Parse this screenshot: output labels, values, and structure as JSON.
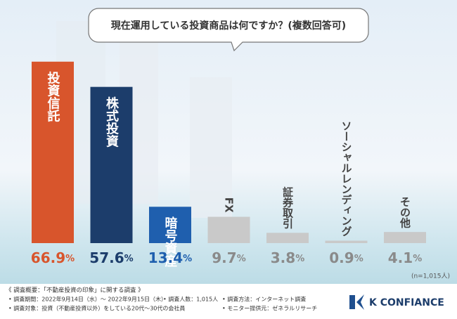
{
  "chart_data": {
    "type": "bar",
    "title": "現在運用している投資商品は何ですか？(複数回答可)",
    "categories": [
      "投資信託",
      "株式投資",
      "暗号資産",
      "FX",
      "証券取引",
      "ソーシャルレンディング",
      "その他"
    ],
    "values": [
      66.9,
      57.6,
      13.4,
      9.7,
      3.8,
      0.9,
      4.1
    ],
    "value_labels": [
      "66.9%",
      "57.6%",
      "13.4%",
      "9.7%",
      "3.8%",
      "0.9%",
      "4.1%"
    ],
    "colors": [
      "#d8552c",
      "#1c3d6b",
      "#1f5fae",
      "#c9c9c9",
      "#c9c9c9",
      "#c9c9c9",
      "#c9c9c9"
    ],
    "note": "(n=1,015人)"
  },
  "footer": {
    "heading": "《 調査概要：「不動産投資の印象」に関する調査 》",
    "items": [
      "• 調査期間：2022年9月14日（水）～ 2022年9月15日（木）",
      "• 調査人数：1,015人",
      "• 調査方法：インターネット調査",
      "• 調査対象：投資（不動産投資以外）をしている20代～30代の会社員",
      "• モニター提供元：ゼネラルリサーチ"
    ]
  },
  "logo": "K CONFIANCE"
}
